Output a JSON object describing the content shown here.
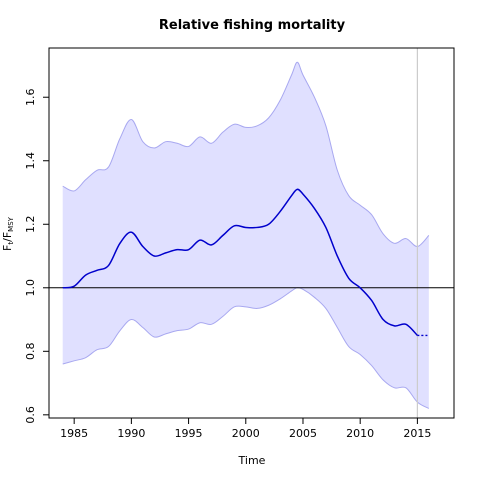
{
  "chart_data": {
    "type": "line",
    "title": "Relative fishing mortality",
    "xlabel": "Time",
    "ylabel": {
      "main": "F",
      "sub_num": "t",
      "sep": "/F",
      "sub_den": "MSY"
    },
    "xlim": [
      1982.8,
      2018.2
    ],
    "ylim": [
      0.59,
      1.755
    ],
    "x_ticks": [
      1985,
      1990,
      1995,
      2000,
      2005,
      2010,
      2015
    ],
    "y_ticks": [
      0.6,
      0.8,
      1.0,
      1.2,
      1.4,
      1.6
    ],
    "reference_line": 1.0,
    "vertical_line": 2015,
    "colors": {
      "estimate": "#0000cc",
      "band_fill": "#e0e0ff",
      "band_edge": "#a8a8f0",
      "ref_line": "#000000",
      "vline": "#cccccc"
    },
    "estimate": {
      "x": [
        1984,
        1985,
        1986,
        1987,
        1988,
        1989,
        1990,
        1991,
        1992,
        1993,
        1994,
        1995,
        1996,
        1997,
        1998,
        1999,
        2000,
        2001,
        2002,
        2003,
        2004,
        2004.5,
        2005,
        2006,
        2007,
        2008,
        2009,
        2010,
        2011,
        2012,
        2013,
        2014,
        2015
      ],
      "y": [
        1.0,
        1.005,
        1.04,
        1.055,
        1.07,
        1.14,
        1.175,
        1.13,
        1.1,
        1.11,
        1.12,
        1.12,
        1.15,
        1.135,
        1.165,
        1.195,
        1.19,
        1.19,
        1.2,
        1.24,
        1.29,
        1.31,
        1.295,
        1.25,
        1.19,
        1.1,
        1.03,
        1.0,
        0.96,
        0.9,
        0.88,
        0.885,
        0.85
      ]
    },
    "projection": {
      "x": [
        2015,
        2016
      ],
      "y": [
        0.85,
        0.85
      ]
    },
    "upper_band": {
      "x": [
        1984,
        1985,
        1986,
        1987,
        1988,
        1989,
        1990,
        1991,
        1992,
        1993,
        1994,
        1995,
        1996,
        1997,
        1998,
        1999,
        2000,
        2001,
        2002,
        2003,
        2004,
        2004.5,
        2005,
        2006,
        2007,
        2008,
        2009,
        2010,
        2011,
        2012,
        2013,
        2014,
        2015,
        2016
      ],
      "y": [
        1.32,
        1.305,
        1.34,
        1.37,
        1.38,
        1.47,
        1.53,
        1.46,
        1.44,
        1.46,
        1.455,
        1.445,
        1.475,
        1.455,
        1.49,
        1.515,
        1.505,
        1.51,
        1.535,
        1.59,
        1.67,
        1.71,
        1.67,
        1.6,
        1.51,
        1.37,
        1.29,
        1.26,
        1.23,
        1.17,
        1.14,
        1.155,
        1.13,
        1.165
      ]
    },
    "lower_band": {
      "x": [
        1984,
        1985,
        1986,
        1987,
        1988,
        1989,
        1990,
        1991,
        1992,
        1993,
        1994,
        1995,
        1996,
        1997,
        1998,
        1999,
        2000,
        2001,
        2002,
        2003,
        2004,
        2004.5,
        2005,
        2006,
        2007,
        2008,
        2009,
        2010,
        2011,
        2012,
        2013,
        2014,
        2015,
        2016
      ],
      "y": [
        0.76,
        0.77,
        0.78,
        0.805,
        0.815,
        0.865,
        0.9,
        0.875,
        0.845,
        0.855,
        0.865,
        0.87,
        0.89,
        0.885,
        0.91,
        0.94,
        0.94,
        0.935,
        0.945,
        0.965,
        0.99,
        1.0,
        0.995,
        0.97,
        0.935,
        0.875,
        0.815,
        0.79,
        0.755,
        0.71,
        0.685,
        0.685,
        0.64,
        0.62
      ]
    }
  }
}
